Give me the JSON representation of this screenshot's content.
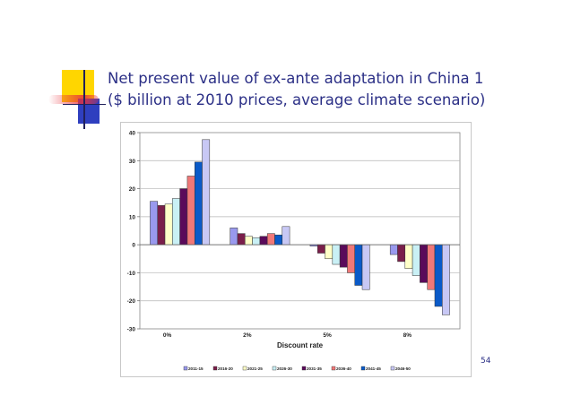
{
  "slide": {
    "title_line1": "Net present value of ex-ante adaptation in China 1",
    "title_line2": "($ billion at 2010 prices, average climate scenario)",
    "page_number": "54"
  },
  "colors": {
    "title": "#2b2f86",
    "deco_yellow": "#ffd600",
    "deco_blue": "#2f3fbf",
    "deco_red": "#e8323c"
  },
  "chart_data": {
    "type": "bar",
    "title": "",
    "xlabel": "Discount rate",
    "ylabel": "",
    "ylim": [
      -30,
      40
    ],
    "yticks": [
      40,
      30,
      20,
      10,
      0,
      -10,
      -20,
      -30
    ],
    "grid": true,
    "legend_position": "bottom",
    "categories": [
      "0%",
      "2%",
      "5%",
      "8%"
    ],
    "series": [
      {
        "name": "2011-15",
        "color": "#9999ee",
        "values": [
          15.5,
          6,
          -0.5,
          -3.5
        ]
      },
      {
        "name": "2016-20",
        "color": "#7a1f4a",
        "values": [
          14,
          4,
          -3,
          -6
        ]
      },
      {
        "name": "2021-25",
        "color": "#ffffc8",
        "values": [
          14.5,
          3,
          -5,
          -8.5
        ]
      },
      {
        "name": "2026-30",
        "color": "#c9f0f5",
        "values": [
          16.5,
          2.5,
          -7,
          -11
        ]
      },
      {
        "name": "2031-35",
        "color": "#5a0a5a",
        "values": [
          20,
          3,
          -8,
          -13.5
        ]
      },
      {
        "name": "2036-40",
        "color": "#f07878",
        "values": [
          24.5,
          4,
          -10,
          -16
        ]
      },
      {
        "name": "2041-45",
        "color": "#0a5ac8",
        "values": [
          29.5,
          3.5,
          -14.5,
          -22
        ]
      },
      {
        "name": "2046-50",
        "color": "#c8c8f5",
        "values": [
          37.5,
          6.5,
          -16,
          -25
        ]
      }
    ]
  }
}
